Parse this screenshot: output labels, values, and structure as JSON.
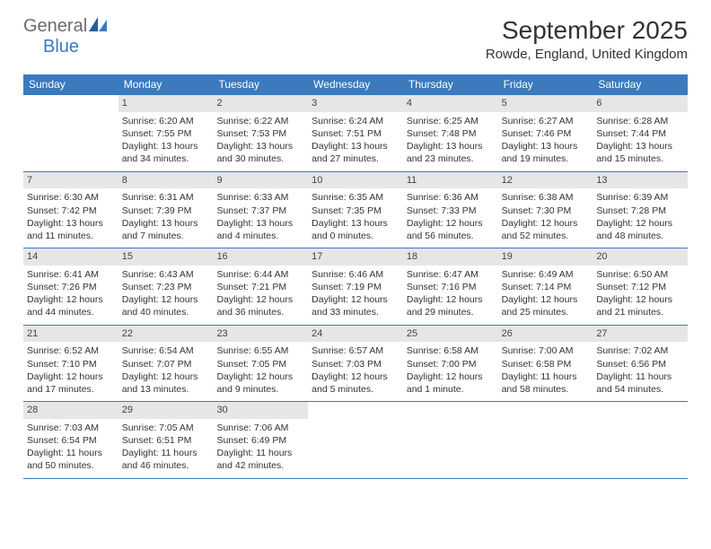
{
  "logo": {
    "text1": "General",
    "text2": "Blue"
  },
  "title": "September 2025",
  "location": "Rowde, England, United Kingdom",
  "colors": {
    "header_bg": "#3a7abd",
    "daynum_bg": "#e6e6e6",
    "rule": "#3a7abd",
    "logo_gray": "#6b6b6b",
    "logo_blue": "#3a7abd"
  },
  "daysOfWeek": [
    "Sunday",
    "Monday",
    "Tuesday",
    "Wednesday",
    "Thursday",
    "Friday",
    "Saturday"
  ],
  "weeks": [
    [
      null,
      {
        "n": "1",
        "sunrise": "6:20 AM",
        "sunset": "7:55 PM",
        "daylight": "13 hours and 34 minutes."
      },
      {
        "n": "2",
        "sunrise": "6:22 AM",
        "sunset": "7:53 PM",
        "daylight": "13 hours and 30 minutes."
      },
      {
        "n": "3",
        "sunrise": "6:24 AM",
        "sunset": "7:51 PM",
        "daylight": "13 hours and 27 minutes."
      },
      {
        "n": "4",
        "sunrise": "6:25 AM",
        "sunset": "7:48 PM",
        "daylight": "13 hours and 23 minutes."
      },
      {
        "n": "5",
        "sunrise": "6:27 AM",
        "sunset": "7:46 PM",
        "daylight": "13 hours and 19 minutes."
      },
      {
        "n": "6",
        "sunrise": "6:28 AM",
        "sunset": "7:44 PM",
        "daylight": "13 hours and 15 minutes."
      }
    ],
    [
      {
        "n": "7",
        "sunrise": "6:30 AM",
        "sunset": "7:42 PM",
        "daylight": "13 hours and 11 minutes."
      },
      {
        "n": "8",
        "sunrise": "6:31 AM",
        "sunset": "7:39 PM",
        "daylight": "13 hours and 7 minutes."
      },
      {
        "n": "9",
        "sunrise": "6:33 AM",
        "sunset": "7:37 PM",
        "daylight": "13 hours and 4 minutes."
      },
      {
        "n": "10",
        "sunrise": "6:35 AM",
        "sunset": "7:35 PM",
        "daylight": "13 hours and 0 minutes."
      },
      {
        "n": "11",
        "sunrise": "6:36 AM",
        "sunset": "7:33 PM",
        "daylight": "12 hours and 56 minutes."
      },
      {
        "n": "12",
        "sunrise": "6:38 AM",
        "sunset": "7:30 PM",
        "daylight": "12 hours and 52 minutes."
      },
      {
        "n": "13",
        "sunrise": "6:39 AM",
        "sunset": "7:28 PM",
        "daylight": "12 hours and 48 minutes."
      }
    ],
    [
      {
        "n": "14",
        "sunrise": "6:41 AM",
        "sunset": "7:26 PM",
        "daylight": "12 hours and 44 minutes."
      },
      {
        "n": "15",
        "sunrise": "6:43 AM",
        "sunset": "7:23 PM",
        "daylight": "12 hours and 40 minutes."
      },
      {
        "n": "16",
        "sunrise": "6:44 AM",
        "sunset": "7:21 PM",
        "daylight": "12 hours and 36 minutes."
      },
      {
        "n": "17",
        "sunrise": "6:46 AM",
        "sunset": "7:19 PM",
        "daylight": "12 hours and 33 minutes."
      },
      {
        "n": "18",
        "sunrise": "6:47 AM",
        "sunset": "7:16 PM",
        "daylight": "12 hours and 29 minutes."
      },
      {
        "n": "19",
        "sunrise": "6:49 AM",
        "sunset": "7:14 PM",
        "daylight": "12 hours and 25 minutes."
      },
      {
        "n": "20",
        "sunrise": "6:50 AM",
        "sunset": "7:12 PM",
        "daylight": "12 hours and 21 minutes."
      }
    ],
    [
      {
        "n": "21",
        "sunrise": "6:52 AM",
        "sunset": "7:10 PM",
        "daylight": "12 hours and 17 minutes."
      },
      {
        "n": "22",
        "sunrise": "6:54 AM",
        "sunset": "7:07 PM",
        "daylight": "12 hours and 13 minutes."
      },
      {
        "n": "23",
        "sunrise": "6:55 AM",
        "sunset": "7:05 PM",
        "daylight": "12 hours and 9 minutes."
      },
      {
        "n": "24",
        "sunrise": "6:57 AM",
        "sunset": "7:03 PM",
        "daylight": "12 hours and 5 minutes."
      },
      {
        "n": "25",
        "sunrise": "6:58 AM",
        "sunset": "7:00 PM",
        "daylight": "12 hours and 1 minute."
      },
      {
        "n": "26",
        "sunrise": "7:00 AM",
        "sunset": "6:58 PM",
        "daylight": "11 hours and 58 minutes."
      },
      {
        "n": "27",
        "sunrise": "7:02 AM",
        "sunset": "6:56 PM",
        "daylight": "11 hours and 54 minutes."
      }
    ],
    [
      {
        "n": "28",
        "sunrise": "7:03 AM",
        "sunset": "6:54 PM",
        "daylight": "11 hours and 50 minutes."
      },
      {
        "n": "29",
        "sunrise": "7:05 AM",
        "sunset": "6:51 PM",
        "daylight": "11 hours and 46 minutes."
      },
      {
        "n": "30",
        "sunrise": "7:06 AM",
        "sunset": "6:49 PM",
        "daylight": "11 hours and 42 minutes."
      },
      null,
      null,
      null,
      null
    ]
  ],
  "labels": {
    "sunrise": "Sunrise:",
    "sunset": "Sunset:",
    "daylight": "Daylight:"
  }
}
